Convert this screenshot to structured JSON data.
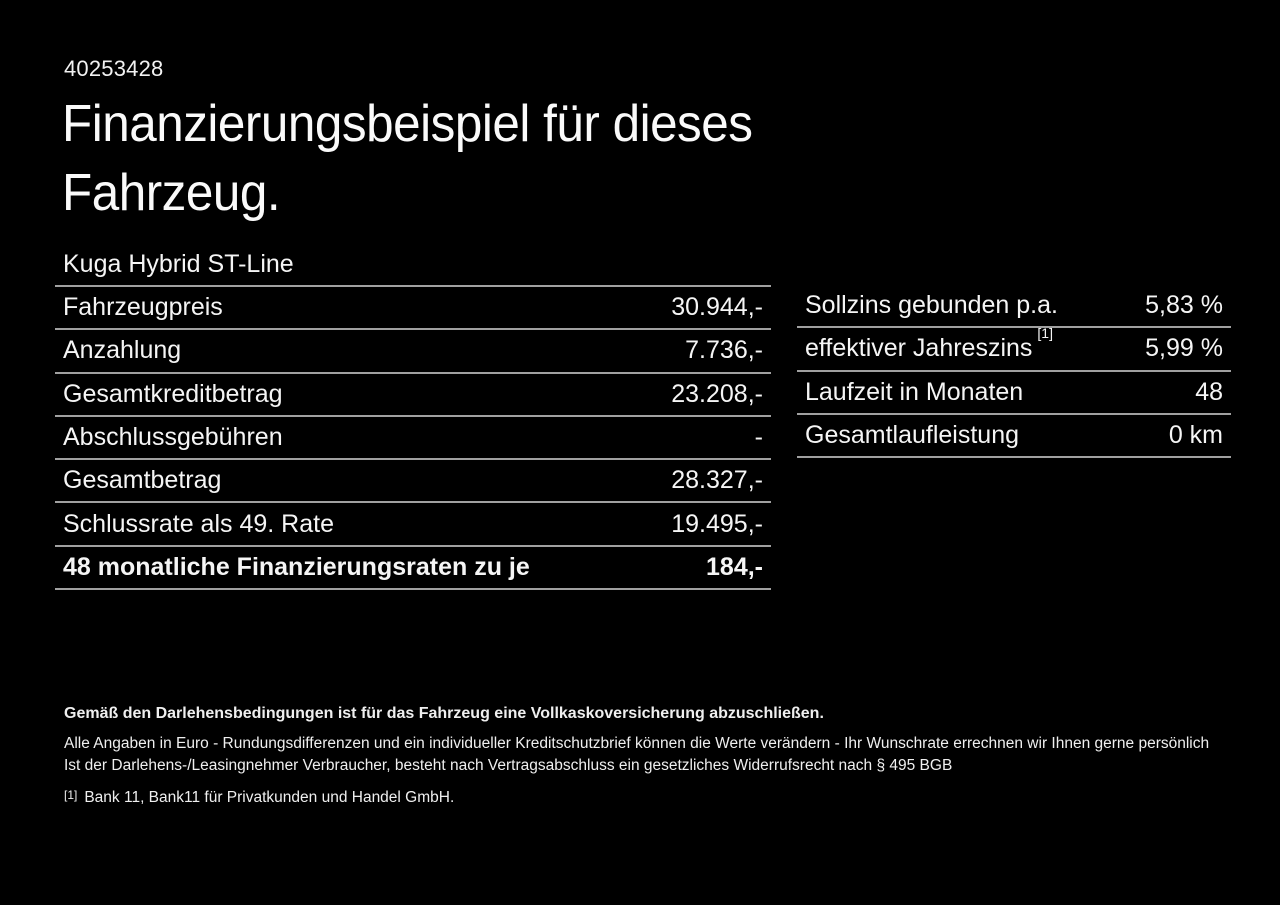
{
  "page": {
    "id_number": "40253428",
    "title_line1": "Finanzierungsbeispiel für dieses",
    "title_line2": "Fahrzeug.",
    "vehicle_name": "Kuga Hybrid ST-Line"
  },
  "left_table": {
    "rows": [
      {
        "label": "Fahrzeugpreis",
        "value": "30.944,-",
        "bold": false
      },
      {
        "label": "Anzahlung",
        "value": "7.736,-",
        "bold": false
      },
      {
        "label": "Gesamtkreditbetrag",
        "value": "23.208,-",
        "bold": false
      },
      {
        "label": "Abschlussgebühren",
        "value": "-",
        "bold": false
      },
      {
        "label": "Gesamtbetrag",
        "value": "28.327,-",
        "bold": false
      },
      {
        "label": "Schlussrate als 49. Rate",
        "value": "19.495,-",
        "bold": false
      },
      {
        "label": "48 monatliche Finanzierungsraten zu je",
        "value": "184,-",
        "bold": true
      }
    ]
  },
  "right_table": {
    "rows": [
      {
        "label": "Sollzins gebunden p.a.",
        "superscript": "",
        "value": "5,83 %"
      },
      {
        "label": "effektiver Jahreszins",
        "superscript": "[1]",
        "value": "5,99 %"
      },
      {
        "label": "Laufzeit in Monaten",
        "superscript": "",
        "value": "48"
      },
      {
        "label": "Gesamtlaufleistung",
        "superscript": "",
        "value": "0 km"
      }
    ]
  },
  "footer": {
    "bold_note": "Gemäß den Darlehensbedingungen ist für das Fahrzeug eine Vollkaskoversicherung abzuschließen.",
    "note_line1": "Alle Angaben in Euro - Rundungsdifferenzen und ein individueller Kreditschutzbrief können die Werte verändern - Ihr Wunschrate errechnen wir Ihnen gerne persönlich",
    "note_line2": "Ist der Darlehens-/Leasingnehmer Verbraucher, besteht nach Vertragsabschluss ein gesetzliches Widerrufsrecht nach § 495 BGB",
    "footnote_marker": "[1]",
    "footnote_text": "Bank 11, Bank11 für Privatkunden und Handel GmbH."
  },
  "colors": {
    "background": "#000000",
    "text": "#f5f5f5",
    "divider": "#a0a0a0"
  }
}
